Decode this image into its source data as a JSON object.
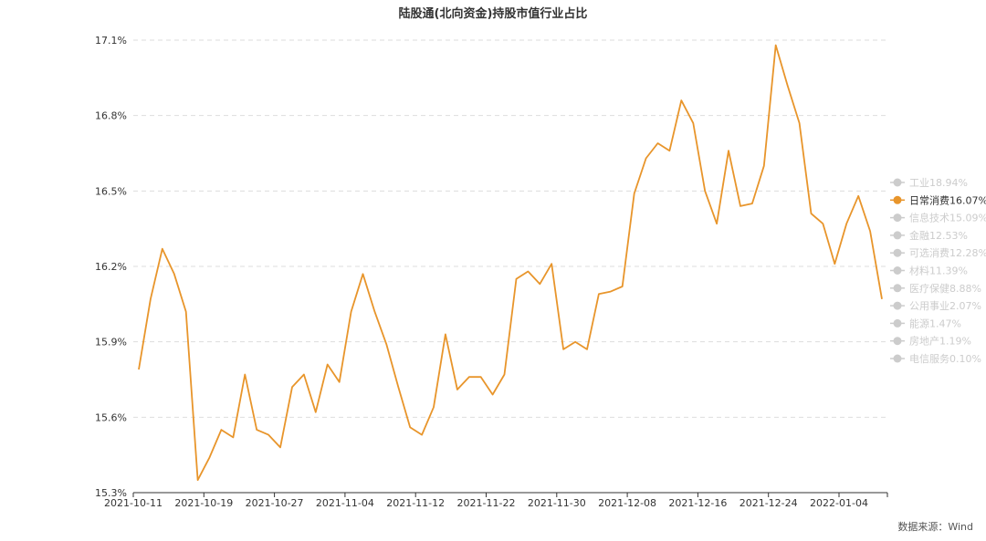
{
  "chart_data": {
    "type": "line",
    "title": "陆股通(北向资金)持股市值行业占比",
    "xlabel": "",
    "ylabel": "",
    "ylim": [
      15.3,
      17.1
    ],
    "yticks": [
      "15.3%",
      "15.6%",
      "15.9%",
      "16.2%",
      "16.5%",
      "16.8%",
      "17.1%"
    ],
    "xticks": [
      "2021-10-11",
      "2021-10-19",
      "2021-10-27",
      "2021-11-04",
      "2021-11-12",
      "2021-11-22",
      "2021-11-30",
      "2021-12-08",
      "2021-12-16",
      "2021-12-24",
      "2022-01-04"
    ],
    "grid": true,
    "legend_position": "right",
    "legend": [
      {
        "label": "工业18.94%",
        "active": false
      },
      {
        "label": "日常消费16.07%",
        "active": true
      },
      {
        "label": "信息技术15.09%",
        "active": false
      },
      {
        "label": "金融12.53%",
        "active": false
      },
      {
        "label": "可选消费12.28%",
        "active": false
      },
      {
        "label": "材料11.39%",
        "active": false
      },
      {
        "label": "医疗保健8.88%",
        "active": false
      },
      {
        "label": "公用事业2.07%",
        "active": false
      },
      {
        "label": "能源1.47%",
        "active": false
      },
      {
        "label": "房地产1.19%",
        "active": false
      },
      {
        "label": "电信服务0.10%",
        "active": false
      }
    ],
    "series": [
      {
        "name": "日常消费16.07%",
        "color": "#E8952B",
        "values": [
          15.79,
          16.07,
          16.27,
          16.17,
          16.02,
          15.35,
          15.44,
          15.55,
          15.52,
          15.77,
          15.55,
          15.53,
          15.48,
          15.72,
          15.77,
          15.62,
          15.81,
          15.74,
          16.02,
          16.17,
          16.02,
          15.89,
          15.72,
          15.56,
          15.53,
          15.64,
          15.93,
          15.71,
          15.76,
          15.76,
          15.69,
          15.77,
          16.15,
          16.18,
          16.13,
          16.21,
          15.87,
          15.9,
          15.87,
          16.09,
          16.1,
          16.12,
          16.49,
          16.63,
          16.69,
          16.66,
          16.86,
          16.77,
          16.5,
          16.37,
          16.66,
          16.44,
          16.45,
          16.6,
          17.08,
          16.92,
          16.77,
          16.41,
          16.37,
          16.21,
          16.37,
          16.48,
          16.34,
          16.07
        ]
      }
    ]
  },
  "source_label": "数据来源：Wind",
  "colors": {
    "line": "#E8952B",
    "legend_inactive": "#CCCCCC",
    "grid": "#DDDDDD",
    "axis": "#333333"
  }
}
